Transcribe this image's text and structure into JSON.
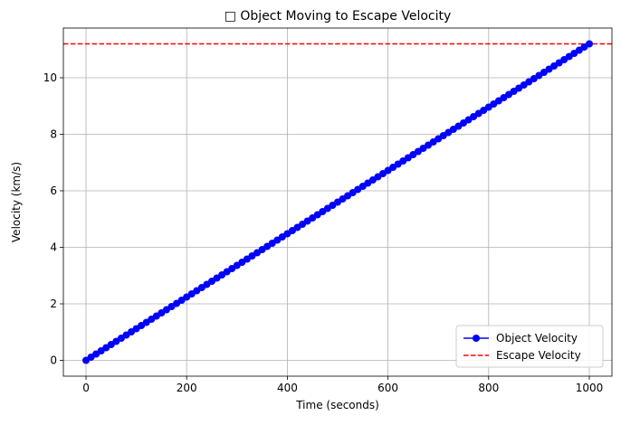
{
  "chart_data": {
    "type": "line",
    "title": "□ Object Moving to Escape Velocity",
    "xlabel": "Time (seconds)",
    "ylabel": "Velocity (km/s)",
    "xlim": [
      -45,
      1045
    ],
    "ylim": [
      -0.56,
      11.76
    ],
    "xticks": [
      0,
      200,
      400,
      600,
      800,
      1000
    ],
    "yticks": [
      0,
      2,
      4,
      6,
      8,
      10
    ],
    "grid": true,
    "legend_position": "lower-right",
    "series": [
      {
        "name": "Object Velocity",
        "color": "#0000ff",
        "style": "solid-line-with-circle-markers",
        "x_start": 0,
        "x_end": 1000,
        "y_start": 0,
        "y_end": 11.2,
        "point_count": 101
      }
    ],
    "reference_lines": [
      {
        "name": "Escape Velocity",
        "y": 11.2,
        "color": "#ff0000",
        "style": "dashed"
      }
    ]
  }
}
